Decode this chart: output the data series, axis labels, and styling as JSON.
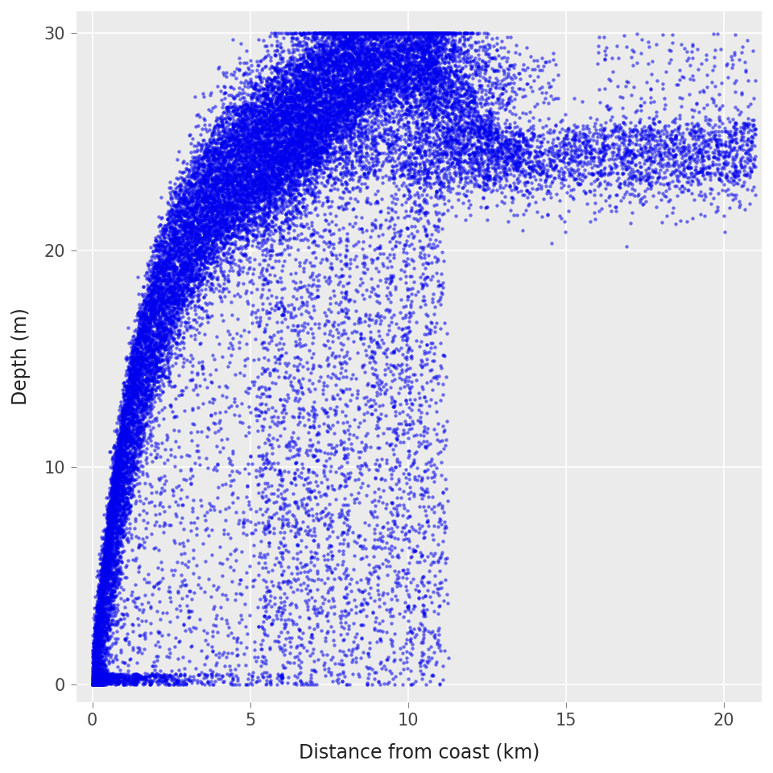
{
  "title": "",
  "xlabel": "Distance from coast (km)",
  "ylabel": "Depth (m)",
  "xlim": [
    -0.5,
    21.2
  ],
  "ylim": [
    -0.8,
    31
  ],
  "xticks": [
    0,
    5,
    10,
    15,
    20
  ],
  "yticks": [
    0,
    10,
    20,
    30
  ],
  "bg_color": "#EBEBEB",
  "panel_bg": "#EBEBEB",
  "grid_color": "#FFFFFF",
  "dot_color": "#0000EE",
  "dot_alpha": 0.55,
  "dot_size": 10,
  "seed": 42
}
